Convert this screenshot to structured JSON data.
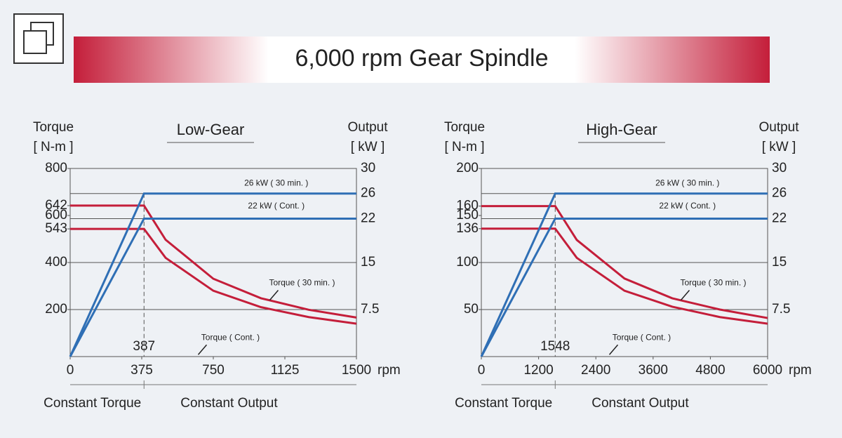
{
  "title": "6,000 rpm Gear Spindle",
  "chart_data": [
    {
      "type": "line",
      "title": "Low-Gear",
      "y_label": [
        "Torque",
        "[ N-m ]"
      ],
      "y2_label": [
        "Output",
        "[ kW ]"
      ],
      "x_unit": "rpm",
      "xlim": [
        0,
        1500
      ],
      "xticks": [
        0,
        375,
        750,
        1125,
        1500
      ],
      "ylim": [
        0,
        800
      ],
      "yticks": [
        200,
        400,
        543,
        600,
        642,
        800
      ],
      "y2lim": [
        0,
        30
      ],
      "y2ticks": [
        7.5,
        15,
        22,
        26,
        30
      ],
      "marker": 387,
      "regions": [
        "Constant Torque",
        "Constant Output"
      ],
      "series": [
        {
          "name": "Torque ( 30 min. )",
          "color": "#c41e3a",
          "x": [
            0,
            387,
            500,
            750,
            1000,
            1250,
            1500
          ],
          "values": [
            642,
            642,
            497,
            331,
            248,
            199,
            166
          ]
        },
        {
          "name": "Torque ( Cont. )",
          "color": "#c41e3a",
          "x": [
            0,
            387,
            500,
            750,
            1000,
            1250,
            1500
          ],
          "values": [
            543,
            543,
            420,
            280,
            210,
            168,
            140
          ]
        },
        {
          "name": "26 kW ( 30 min. )",
          "color": "#2f6fb5",
          "axis": "y2",
          "x": [
            0,
            387,
            1500
          ],
          "values": [
            0,
            26,
            26
          ]
        },
        {
          "name": "22 kW ( Cont. )",
          "color": "#2f6fb5",
          "axis": "y2",
          "x": [
            0,
            387,
            1500
          ],
          "values": [
            0,
            22,
            22
          ]
        }
      ]
    },
    {
      "type": "line",
      "title": "High-Gear",
      "y_label": [
        "Torque",
        "[ N-m ]"
      ],
      "y2_label": [
        "Output",
        "[ kW ]"
      ],
      "x_unit": "rpm",
      "xlim": [
        0,
        6000
      ],
      "xticks": [
        0,
        1200,
        2400,
        3600,
        4800,
        6000
      ],
      "ylim": [
        0,
        200
      ],
      "yticks": [
        50,
        100,
        136,
        150,
        160,
        200
      ],
      "y2lim": [
        0,
        30
      ],
      "y2ticks": [
        7.5,
        15,
        22,
        26,
        30
      ],
      "marker": 1548,
      "regions": [
        "Constant Torque",
        "Constant Output"
      ],
      "series": [
        {
          "name": "Torque ( 30 min. )",
          "color": "#c41e3a",
          "x": [
            0,
            1548,
            2000,
            3000,
            4000,
            5000,
            6000
          ],
          "values": [
            160,
            160,
            124,
            83,
            62,
            50,
            41
          ]
        },
        {
          "name": "Torque ( Cont. )",
          "color": "#c41e3a",
          "x": [
            0,
            1548,
            2000,
            3000,
            4000,
            5000,
            6000
          ],
          "values": [
            136,
            136,
            105,
            70,
            53,
            42,
            35
          ]
        },
        {
          "name": "26 kW ( 30 min. )",
          "color": "#2f6fb5",
          "axis": "y2",
          "x": [
            0,
            1548,
            6000
          ],
          "values": [
            0,
            26,
            26
          ]
        },
        {
          "name": "22 kW ( Cont. )",
          "color": "#2f6fb5",
          "axis": "y2",
          "x": [
            0,
            1548,
            6000
          ],
          "values": [
            0,
            22,
            22
          ]
        }
      ]
    }
  ]
}
